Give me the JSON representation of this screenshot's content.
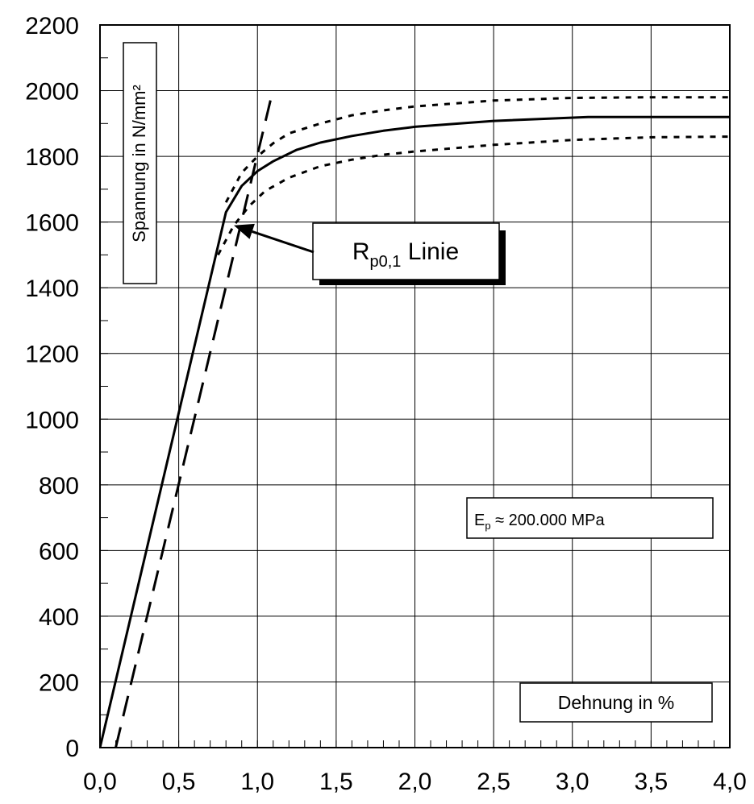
{
  "chart_data": {
    "type": "line",
    "title": "",
    "xlabel": "Dehnung in %",
    "ylabel": "Spannung in N/mm²",
    "xlim": [
      0,
      4
    ],
    "ylim": [
      0,
      2200
    ],
    "x_ticks": [
      "0,0",
      "0,5",
      "1,0",
      "1,5",
      "2,0",
      "2,5",
      "3,0",
      "3,5",
      "4,0"
    ],
    "y_ticks": [
      "0",
      "200",
      "400",
      "600",
      "800",
      "1000",
      "1200",
      "1400",
      "1600",
      "1800",
      "2000",
      "2200"
    ],
    "grid": true,
    "series": [
      {
        "style": "solid",
        "x": [
          0,
          0.8,
          0.9,
          1.0,
          1.1,
          1.25,
          1.4,
          1.6,
          1.8,
          2.0,
          2.5,
          3.1,
          4.0
        ],
        "y": [
          0,
          1630,
          1710,
          1755,
          1785,
          1820,
          1842,
          1862,
          1878,
          1890,
          1908,
          1920,
          1920
        ]
      },
      {
        "style": "dotted",
        "x": [
          0.8,
          0.9,
          1.0,
          1.1,
          1.2,
          1.4,
          1.6,
          1.8,
          2.0,
          2.5,
          3.0,
          3.5,
          4.0
        ],
        "y": [
          1660,
          1750,
          1800,
          1840,
          1870,
          1900,
          1925,
          1940,
          1952,
          1970,
          1978,
          1980,
          1980
        ]
      },
      {
        "style": "dotted",
        "x": [
          0.75,
          0.85,
          0.95,
          1.05,
          1.2,
          1.4,
          1.6,
          1.8,
          2.0,
          2.5,
          3.0,
          3.5,
          4.0
        ],
        "y": [
          1500,
          1590,
          1650,
          1695,
          1735,
          1770,
          1790,
          1805,
          1815,
          1835,
          1850,
          1858,
          1860
        ]
      },
      {
        "style": "dashed",
        "x": [
          0.1,
          1.09
        ],
        "y": [
          0,
          1985
        ]
      }
    ],
    "annotations": {
      "rp_label_main": "R",
      "rp_label_sub": "p0,1",
      "rp_label_suffix": " Linie",
      "rp_arrow_target": [
        0.85,
        1590
      ],
      "modulus_main": "E",
      "modulus_sub": "p",
      "modulus_suffix": " ≈ 200.000 MPa"
    }
  }
}
